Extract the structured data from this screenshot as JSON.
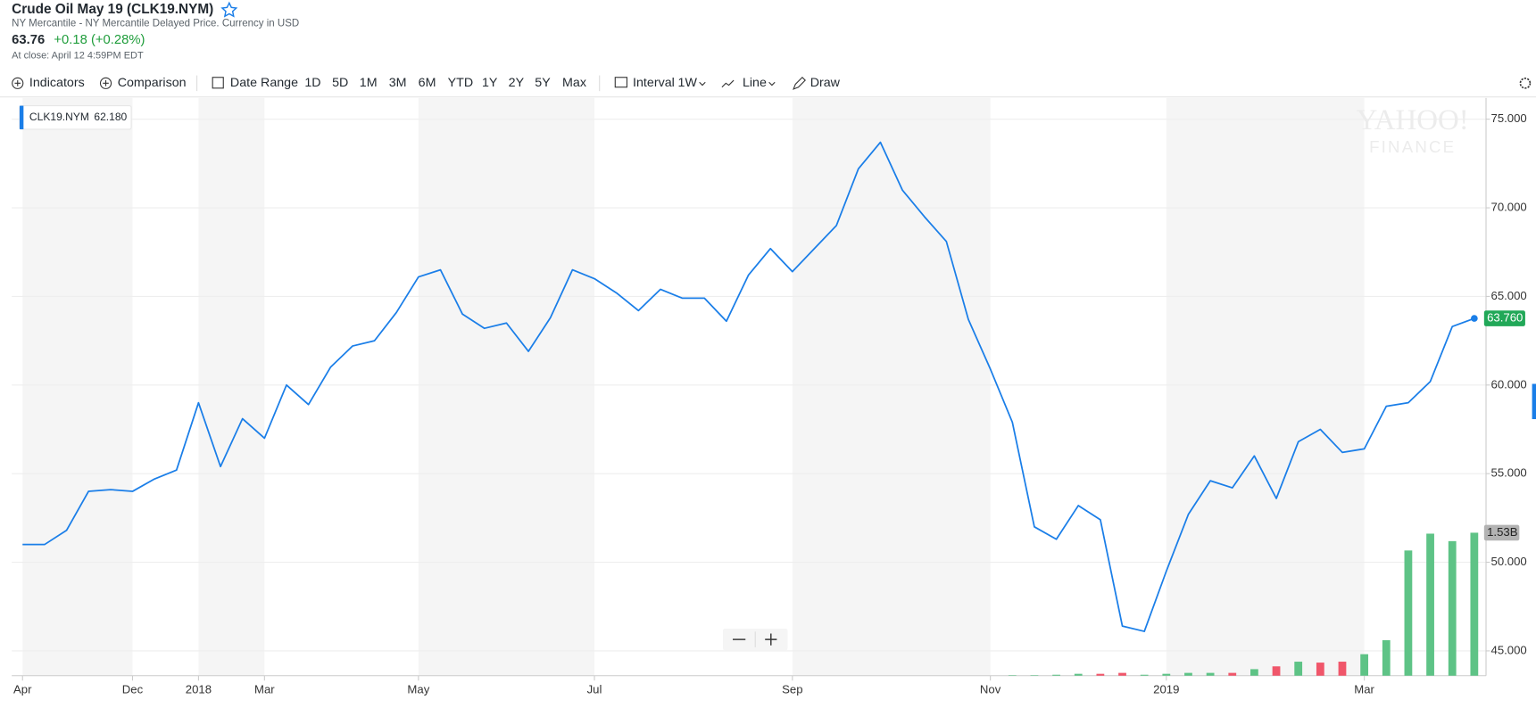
{
  "header": {
    "title": "Crude Oil May 19 (CLK19.NYM)",
    "subtitle": "NY Mercantile - NY Mercantile Delayed Price. Currency in USD",
    "price": "63.76",
    "change": "+0.18 (+0.28%)",
    "close_time": "At close: April 12 4:59PM EDT"
  },
  "toolbar": {
    "indicators": "Indicators",
    "comparison": "Comparison",
    "date_range": "Date Range",
    "ranges": [
      "1D",
      "5D",
      "1M",
      "3M",
      "6M",
      "YTD",
      "1Y",
      "2Y",
      "5Y",
      "Max"
    ],
    "interval": "Interval",
    "interval_value": "1W",
    "chart_type": "Line",
    "draw": "Draw"
  },
  "watermark": {
    "line1": "YAHOO!",
    "line2": "FINANCE"
  },
  "chart_data": {
    "type": "line",
    "categories": [
      "Apr",
      null,
      null,
      null,
      null,
      "Dec",
      null,
      null,
      "2018",
      null,
      null,
      "Mar",
      null,
      null,
      null,
      null,
      null,
      null,
      "May",
      null,
      null,
      null,
      null,
      null,
      null,
      null,
      "Jul",
      null,
      null,
      null,
      null,
      null,
      null,
      null,
      null,
      "Sep",
      null,
      null,
      null,
      null,
      null,
      null,
      null,
      null,
      "Nov",
      null,
      null,
      null,
      null,
      null,
      null,
      null,
      "2019",
      null,
      null,
      null,
      null,
      null,
      null,
      null,
      null,
      "Mar",
      null,
      null,
      null,
      null,
      null
    ],
    "series": [
      {
        "name": "CLK19.NYM",
        "color": "#1a7ee8",
        "values": [
          51.0,
          51.0,
          51.8,
          54.0,
          54.1,
          54.0,
          54.7,
          55.2,
          59.0,
          55.4,
          58.1,
          57.0,
          60.0,
          58.9,
          61.0,
          62.2,
          62.5,
          64.1,
          66.1,
          66.5,
          64.0,
          63.2,
          63.5,
          61.9,
          63.8,
          66.5,
          66.0,
          65.2,
          64.2,
          65.4,
          64.9,
          64.9,
          63.6,
          66.2,
          67.7,
          66.4,
          67.7,
          69.0,
          72.2,
          73.7,
          71.0,
          69.5,
          68.1,
          63.7,
          60.9,
          57.9,
          52.0,
          51.3,
          53.2,
          52.4,
          46.4,
          46.1,
          49.5,
          52.7,
          54.6,
          54.2,
          56.0,
          53.6,
          56.8,
          57.5,
          56.2,
          56.4,
          58.8,
          59.0,
          60.2,
          63.3,
          63.76
        ]
      }
    ],
    "legend_value": "62.180",
    "price_label": "63.760",
    "price_label_color": "#21a858",
    "volume": {
      "values": [
        null,
        null,
        null,
        null,
        null,
        null,
        null,
        null,
        null,
        null,
        null,
        null,
        null,
        null,
        null,
        null,
        null,
        null,
        null,
        null,
        null,
        null,
        null,
        null,
        null,
        null,
        null,
        null,
        null,
        null,
        null,
        null,
        null,
        null,
        null,
        null,
        null,
        null,
        null,
        null,
        null,
        null,
        null,
        null,
        null,
        5000000,
        5000000,
        10000000,
        20000000,
        20000000,
        30000000,
        10000000,
        20000000,
        30000000,
        30000000,
        30000000,
        70000000,
        100000000,
        150000000,
        140000000,
        150000000,
        230000000,
        380000000,
        1340000000,
        1520000000,
        1440000000,
        1530000000
      ],
      "colors": [
        null,
        null,
        null,
        null,
        null,
        null,
        null,
        null,
        null,
        null,
        null,
        null,
        null,
        null,
        null,
        null,
        null,
        null,
        null,
        null,
        null,
        null,
        null,
        null,
        null,
        null,
        null,
        null,
        null,
        null,
        null,
        null,
        null,
        null,
        null,
        null,
        null,
        null,
        null,
        null,
        null,
        null,
        null,
        null,
        null,
        "#5ec386",
        "#5ec386",
        "#5ec386",
        "#5ec386",
        "#f0566a",
        "#f0566a",
        "#5ec386",
        "#5ec386",
        "#5ec386",
        "#5ec386",
        "#f0566a",
        "#5ec386",
        "#f0566a",
        "#5ec386",
        "#f0566a",
        "#f0566a",
        "#5ec386",
        "#5ec386",
        "#5ec386",
        "#5ec386",
        "#5ec386",
        "#5ec386"
      ],
      "label": "1.53B"
    },
    "ylim": [
      43.6,
      76.2
    ],
    "yticks": [
      {
        "value": 45,
        "label": "45.000"
      },
      {
        "value": 50,
        "label": "50.000"
      },
      {
        "value": 55,
        "label": "55.000"
      },
      {
        "value": 60,
        "label": "60.000"
      },
      {
        "value": 65,
        "label": "65.000"
      },
      {
        "value": 70,
        "label": "70.000"
      },
      {
        "value": 75,
        "label": "75.000"
      }
    ],
    "grid": true
  }
}
